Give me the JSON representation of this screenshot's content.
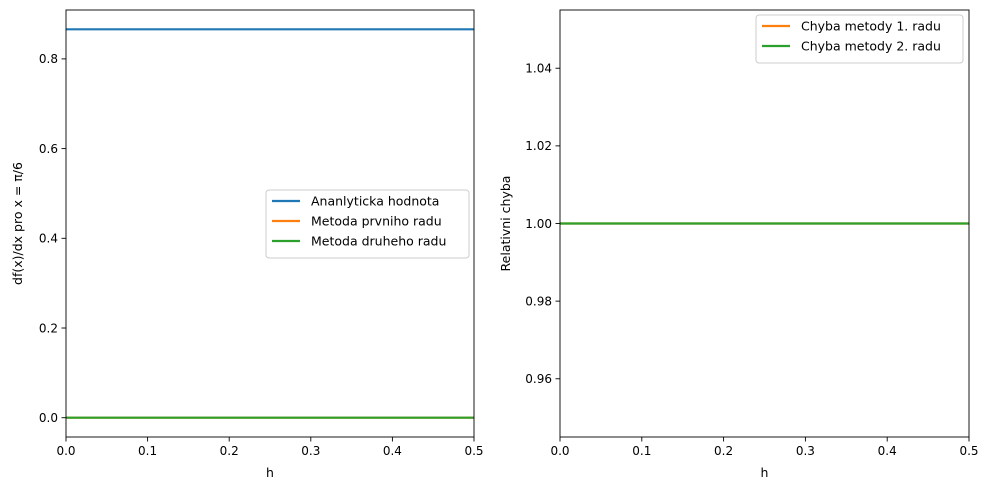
{
  "chart_data": [
    {
      "type": "line",
      "xlabel": "h",
      "ylabel": "df(x)/dx pro x = π/6",
      "xlim": [
        0.0,
        0.5
      ],
      "ylim": [
        -0.043,
        0.909
      ],
      "xticks": [
        0.0,
        0.1,
        0.2,
        0.3,
        0.4,
        0.5
      ],
      "xtick_labels": [
        "0.0",
        "0.1",
        "0.2",
        "0.3",
        "0.4",
        "0.5"
      ],
      "yticks": [
        0.0,
        0.2,
        0.4,
        0.6,
        0.8
      ],
      "ytick_labels": [
        "0.0",
        "0.2",
        "0.4",
        "0.6",
        "0.8"
      ],
      "grid": false,
      "legend_position": "center-right",
      "series": [
        {
          "name": "Ananlyticka hodnota",
          "color": "#1f77b4",
          "x": [
            0.0,
            0.5
          ],
          "values": [
            0.866,
            0.866
          ]
        },
        {
          "name": "Metoda prvniho radu",
          "color": "#ff7f0e",
          "x": [
            0.0,
            0.5
          ],
          "values": [
            0.0,
            0.0
          ]
        },
        {
          "name": "Metoda druheho radu",
          "color": "#2ca02c",
          "x": [
            0.0,
            0.5
          ],
          "values": [
            0.0,
            0.0
          ]
        }
      ]
    },
    {
      "type": "line",
      "xlabel": "h",
      "ylabel": "Relativni chyba",
      "xlim": [
        0.0,
        0.5
      ],
      "ylim": [
        0.945,
        1.055
      ],
      "xticks": [
        0.0,
        0.1,
        0.2,
        0.3,
        0.4,
        0.5
      ],
      "xtick_labels": [
        "0.0",
        "0.1",
        "0.2",
        "0.3",
        "0.4",
        "0.5"
      ],
      "yticks": [
        0.96,
        0.98,
        1.0,
        1.02,
        1.04
      ],
      "ytick_labels": [
        "0.96",
        "0.98",
        "1.00",
        "1.02",
        "1.04"
      ],
      "grid": false,
      "legend_position": "top-right",
      "series": [
        {
          "name": "Chyba metody 1. radu",
          "color": "#ff7f0e",
          "x": [
            0.0,
            0.5
          ],
          "values": [
            1.0,
            1.0
          ]
        },
        {
          "name": "Chyba metody 2. radu",
          "color": "#2ca02c",
          "x": [
            0.0,
            0.5
          ],
          "values": [
            1.0,
            1.0
          ]
        }
      ]
    }
  ]
}
